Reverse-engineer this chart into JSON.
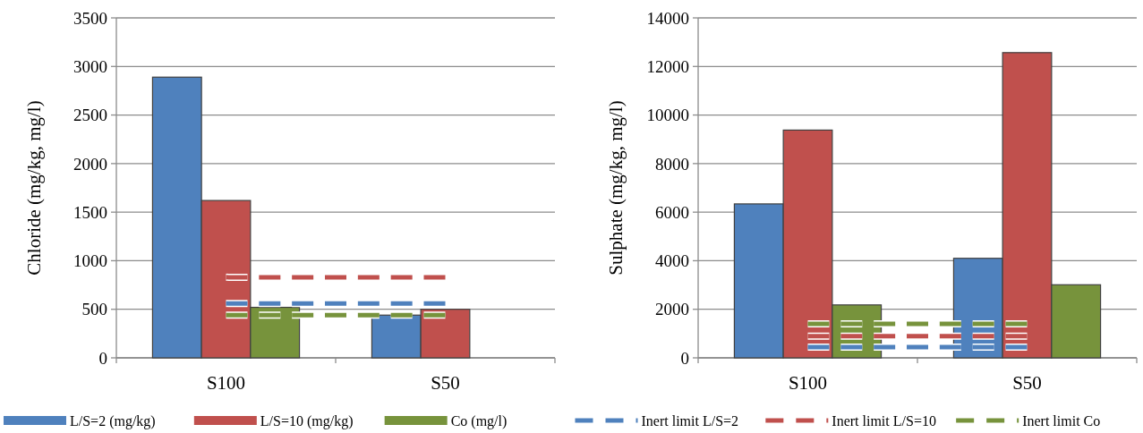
{
  "chart_data": [
    {
      "type": "bar",
      "ylabel": "Chloride (mg/kg, mg/l)",
      "categories": [
        "S100",
        "S50"
      ],
      "ylim": [
        0,
        3500
      ],
      "yticks": [
        0,
        500,
        1000,
        1500,
        2000,
        2500,
        3000,
        3500
      ],
      "grid": "y",
      "legend": "bottom",
      "series": [
        {
          "name": "L/S=2 (mg/kg)",
          "color": "#4f81bd",
          "values": [
            2890,
            440
          ]
        },
        {
          "name": "L/S=10 (mg/kg)",
          "color": "#c0504d",
          "values": [
            1620,
            500
          ]
        },
        {
          "name": "Co (mg/l)",
          "color": "#77933c",
          "values": [
            520,
            null
          ]
        },
        {
          "name": "Inert limit L/S=2",
          "type": "line",
          "line_style": "dashed",
          "color": "#4f81bd",
          "values": [
            560,
            560
          ]
        },
        {
          "name": "Inert limit L/S=10",
          "type": "line",
          "line_style": "dashed",
          "color": "#c0504d",
          "values": [
            830,
            830
          ]
        },
        {
          "name": "Inert limit Co",
          "type": "line",
          "line_style": "dashed",
          "color": "#77933c",
          "values": [
            440,
            440
          ]
        }
      ]
    },
    {
      "type": "bar",
      "ylabel": "Sulphate (mg/kg, mg/l)",
      "categories": [
        "S100",
        "S50"
      ],
      "ylim": [
        0,
        14000
      ],
      "yticks": [
        0,
        2000,
        4000,
        6000,
        8000,
        10000,
        12000,
        14000
      ],
      "grid": "y",
      "legend": "bottom",
      "series": [
        {
          "name": "L/S=2 (mg/kg)",
          "color": "#4f81bd",
          "values": [
            6340,
            4100
          ]
        },
        {
          "name": "L/S=10 (mg/kg)",
          "color": "#c0504d",
          "values": [
            9380,
            12570
          ]
        },
        {
          "name": "Co (mg/l)",
          "color": "#77933c",
          "values": [
            2180,
            3010
          ]
        },
        {
          "name": "Inert limit L/S=2",
          "type": "line",
          "line_style": "dashed",
          "color": "#4f81bd",
          "values": [
            440,
            440
          ]
        },
        {
          "name": "Inert limit L/S=10",
          "type": "line",
          "line_style": "dashed",
          "color": "#c0504d",
          "values": [
            890,
            890
          ]
        },
        {
          "name": "Inert limit Co",
          "type": "line",
          "line_style": "dashed",
          "color": "#77933c",
          "values": [
            1400,
            1400
          ]
        }
      ]
    }
  ]
}
